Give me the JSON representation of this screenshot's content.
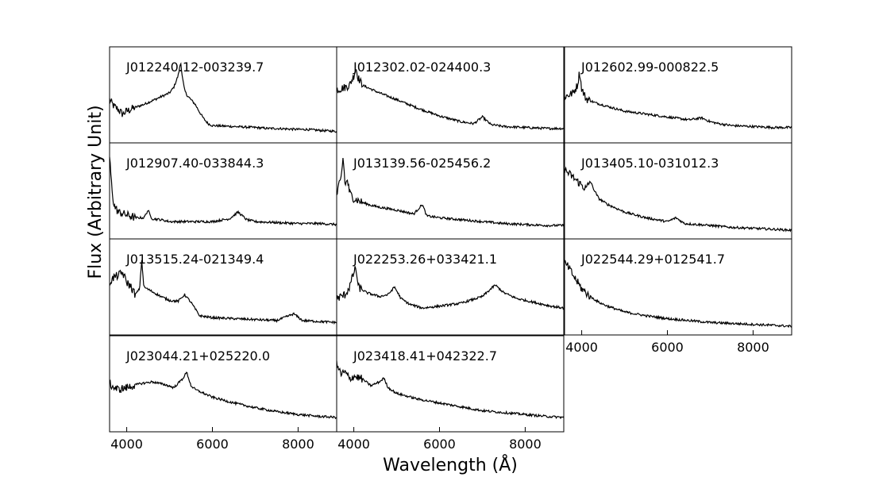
{
  "figure": {
    "ylabel": "Flux (Arbitrary Unit)",
    "xlabel": "Wavelength (Å)"
  },
  "chart_data": {
    "type": "line",
    "layout": "small-multiples grid, 4 rows x 3 columns (11 panels)",
    "xlim": [
      3600,
      8900
    ],
    "xticks": [
      4000,
      6000,
      8000
    ],
    "grid": false,
    "panels": [
      {
        "name": "J012240.12-003239.7",
        "row": 0,
        "col": 0,
        "x": [
          3600,
          3700,
          3800,
          3900,
          4000,
          4200,
          4400,
          4600,
          4800,
          5000,
          5100,
          5200,
          5260,
          5300,
          5350,
          5400,
          5500,
          5600,
          5700,
          5800,
          5900,
          6000,
          6500,
          7000,
          7300,
          7500,
          8000,
          8200,
          8500,
          8900
        ],
        "y": [
          0.45,
          0.38,
          0.35,
          0.3,
          0.33,
          0.37,
          0.4,
          0.44,
          0.48,
          0.52,
          0.58,
          0.7,
          0.84,
          0.68,
          0.55,
          0.5,
          0.45,
          0.4,
          0.32,
          0.25,
          0.2,
          0.18,
          0.17,
          0.16,
          0.15,
          0.15,
          0.14,
          0.14,
          0.13,
          0.12
        ]
      },
      {
        "name": "J012302.02-024400.3",
        "row": 0,
        "col": 1,
        "x": [
          3600,
          3800,
          3900,
          4000,
          4050,
          4100,
          4200,
          4400,
          4600,
          5000,
          5500,
          6000,
          6500,
          6800,
          7000,
          7200,
          7500,
          8000,
          8500,
          8900
        ],
        "y": [
          0.55,
          0.58,
          0.6,
          0.7,
          0.78,
          0.68,
          0.6,
          0.56,
          0.52,
          0.45,
          0.36,
          0.28,
          0.22,
          0.2,
          0.27,
          0.19,
          0.17,
          0.16,
          0.15,
          0.15
        ]
      },
      {
        "name": "J012602.99-000822.5",
        "row": 0,
        "col": 2,
        "x": [
          3600,
          3700,
          3800,
          3900,
          3950,
          4000,
          4100,
          4300,
          4600,
          5000,
          5500,
          6000,
          6500,
          6800,
          7000,
          7200,
          7500,
          8000,
          8500,
          8900
        ],
        "y": [
          0.48,
          0.5,
          0.52,
          0.6,
          0.74,
          0.56,
          0.46,
          0.42,
          0.38,
          0.33,
          0.3,
          0.27,
          0.24,
          0.26,
          0.22,
          0.2,
          0.18,
          0.17,
          0.16,
          0.16
        ]
      },
      {
        "name": "J012907.40-033844.3",
        "row": 1,
        "col": 0,
        "x": [
          3600,
          3650,
          3700,
          3800,
          4000,
          4200,
          4400,
          4500,
          4550,
          4600,
          4800,
          5000,
          5500,
          6000,
          6400,
          6600,
          6800,
          7000,
          7500,
          8000,
          8500,
          8900
        ],
        "y": [
          0.85,
          0.55,
          0.35,
          0.28,
          0.25,
          0.22,
          0.22,
          0.3,
          0.24,
          0.21,
          0.2,
          0.18,
          0.18,
          0.18,
          0.21,
          0.28,
          0.2,
          0.18,
          0.17,
          0.16,
          0.16,
          0.15
        ]
      },
      {
        "name": "J013139.56-025456.2",
        "row": 1,
        "col": 1,
        "x": [
          3600,
          3650,
          3700,
          3750,
          3800,
          3850,
          3900,
          4000,
          4200,
          4400,
          4600,
          5000,
          5400,
          5600,
          5700,
          6000,
          6500,
          7000,
          7500,
          8000,
          8500,
          8900
        ],
        "y": [
          0.45,
          0.55,
          0.62,
          0.85,
          0.55,
          0.62,
          0.48,
          0.42,
          0.38,
          0.35,
          0.33,
          0.3,
          0.26,
          0.36,
          0.24,
          0.22,
          0.2,
          0.18,
          0.16,
          0.15,
          0.14,
          0.14
        ]
      },
      {
        "name": "J013405.10-031012.3",
        "row": 1,
        "col": 2,
        "x": [
          3600,
          3700,
          3800,
          3900,
          4000,
          4100,
          4200,
          4300,
          4400,
          4600,
          5000,
          5500,
          6000,
          6200,
          6400,
          7000,
          7500,
          8000,
          8500,
          8900
        ],
        "y": [
          0.72,
          0.68,
          0.64,
          0.6,
          0.56,
          0.52,
          0.6,
          0.5,
          0.42,
          0.36,
          0.28,
          0.22,
          0.18,
          0.22,
          0.16,
          0.14,
          0.12,
          0.11,
          0.1,
          0.09
        ]
      },
      {
        "name": "J013515.24-021349.4",
        "row": 2,
        "col": 0,
        "x": [
          3600,
          3700,
          3800,
          3900,
          4000,
          4100,
          4200,
          4300,
          4350,
          4400,
          4600,
          4800,
          5000,
          5200,
          5350,
          5500,
          5700,
          6000,
          6500,
          7000,
          7500,
          7900,
          8100,
          8500,
          8900
        ],
        "y": [
          0.55,
          0.6,
          0.62,
          0.65,
          0.55,
          0.5,
          0.42,
          0.48,
          0.78,
          0.5,
          0.45,
          0.4,
          0.36,
          0.35,
          0.42,
          0.34,
          0.2,
          0.18,
          0.17,
          0.16,
          0.15,
          0.22,
          0.15,
          0.14,
          0.13
        ]
      },
      {
        "name": "J022253.26+033421.1",
        "row": 2,
        "col": 1,
        "x": [
          3600,
          3800,
          3900,
          4000,
          4050,
          4100,
          4300,
          4600,
          4800,
          4950,
          5100,
          5300,
          5600,
          6000,
          6500,
          7000,
          7300,
          7500,
          7800,
          8200,
          8600,
          8900
        ],
        "y": [
          0.38,
          0.42,
          0.5,
          0.65,
          0.7,
          0.5,
          0.44,
          0.4,
          0.42,
          0.5,
          0.38,
          0.32,
          0.28,
          0.3,
          0.33,
          0.4,
          0.52,
          0.44,
          0.38,
          0.34,
          0.3,
          0.28
        ]
      },
      {
        "name": "J022544.29+012541.7",
        "row": 2,
        "col": 2,
        "x": [
          3600,
          3700,
          3800,
          3900,
          4000,
          4200,
          4400,
          4600,
          5000,
          5500,
          6000,
          6500,
          7000,
          7500,
          8000,
          8500,
          8900
        ],
        "y": [
          0.75,
          0.7,
          0.62,
          0.55,
          0.48,
          0.4,
          0.34,
          0.3,
          0.24,
          0.2,
          0.17,
          0.15,
          0.13,
          0.12,
          0.11,
          0.1,
          0.09
        ]
      },
      {
        "name": "J023044.21+025220.0",
        "row": 3,
        "col": 0,
        "x": [
          3600,
          3700,
          3800,
          4000,
          4300,
          4600,
          4900,
          5100,
          5300,
          5400,
          5500,
          5600,
          5800,
          6000,
          6500,
          7000,
          7500,
          8000,
          8500,
          8900
        ],
        "y": [
          0.5,
          0.46,
          0.44,
          0.46,
          0.5,
          0.52,
          0.49,
          0.46,
          0.55,
          0.62,
          0.48,
          0.44,
          0.4,
          0.36,
          0.3,
          0.25,
          0.21,
          0.18,
          0.16,
          0.15
        ]
      },
      {
        "name": "J023418.41+042322.7",
        "row": 3,
        "col": 1,
        "x": [
          3600,
          3700,
          3800,
          3900,
          4000,
          4200,
          4400,
          4600,
          4700,
          4800,
          5000,
          5500,
          6000,
          6500,
          7000,
          7500,
          8000,
          8500,
          8900
        ],
        "y": [
          0.7,
          0.6,
          0.62,
          0.55,
          0.58,
          0.55,
          0.48,
          0.52,
          0.56,
          0.46,
          0.4,
          0.34,
          0.3,
          0.26,
          0.22,
          0.2,
          0.18,
          0.16,
          0.15
        ]
      }
    ]
  }
}
